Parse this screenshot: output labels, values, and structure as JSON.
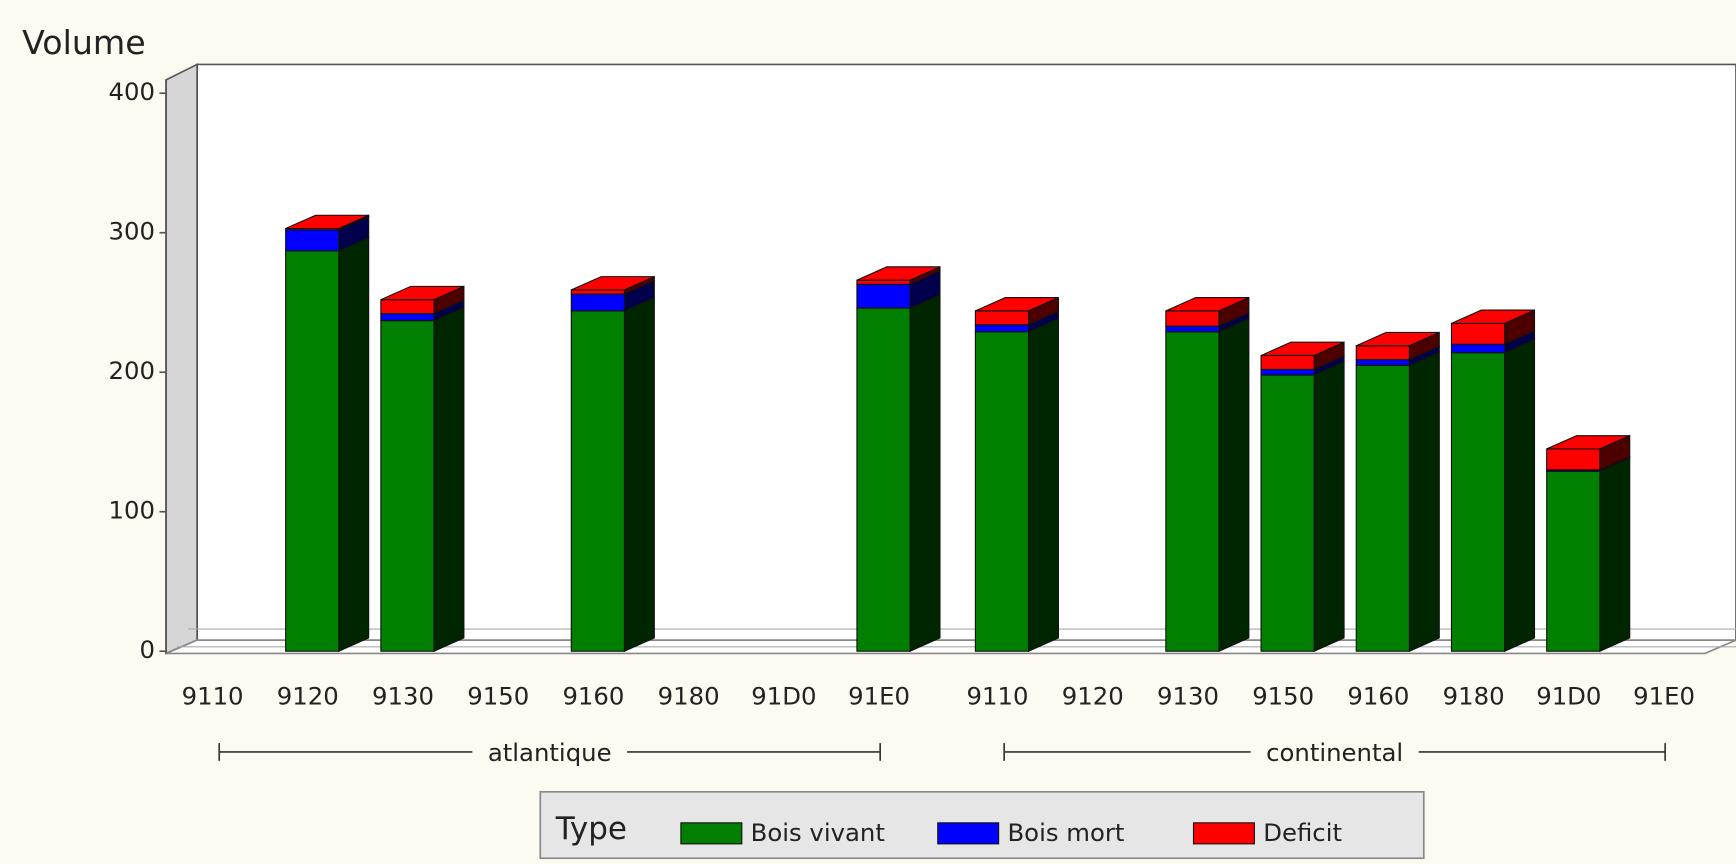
{
  "chart_data": {
    "type": "bar",
    "stacked": true,
    "y_label": "Volume",
    "groups": [
      {
        "name": "atlantique",
        "categories": [
          "9110",
          "9120",
          "9130",
          "9150",
          "9160",
          "9180",
          "91D0",
          "91E0"
        ]
      },
      {
        "name": "continental",
        "categories": [
          "9110",
          "9120",
          "9130",
          "9150",
          "9160",
          "9180",
          "91D0",
          "91E0"
        ]
      }
    ],
    "series": [
      {
        "name": "Bois vivant",
        "color": "#007f00",
        "values": [
          0,
          287,
          237,
          0,
          244,
          0,
          0,
          246,
          229,
          0,
          229,
          198,
          205,
          214,
          129,
          0
        ]
      },
      {
        "name": "Bois mort",
        "color": "#0000ff",
        "values": [
          0,
          15,
          5,
          0,
          12,
          0,
          0,
          17,
          5,
          0,
          4,
          4,
          4,
          6,
          1,
          0
        ]
      },
      {
        "name": "Deficit",
        "color": "#ff0000",
        "values": [
          0,
          1,
          10,
          0,
          3,
          0,
          0,
          3,
          10,
          0,
          11,
          10,
          10,
          15,
          15,
          0
        ]
      }
    ],
    "legend_title": "Type",
    "ylim": [
      0,
      400
    ],
    "yticks": [
      0,
      100,
      200,
      300,
      400
    ]
  }
}
